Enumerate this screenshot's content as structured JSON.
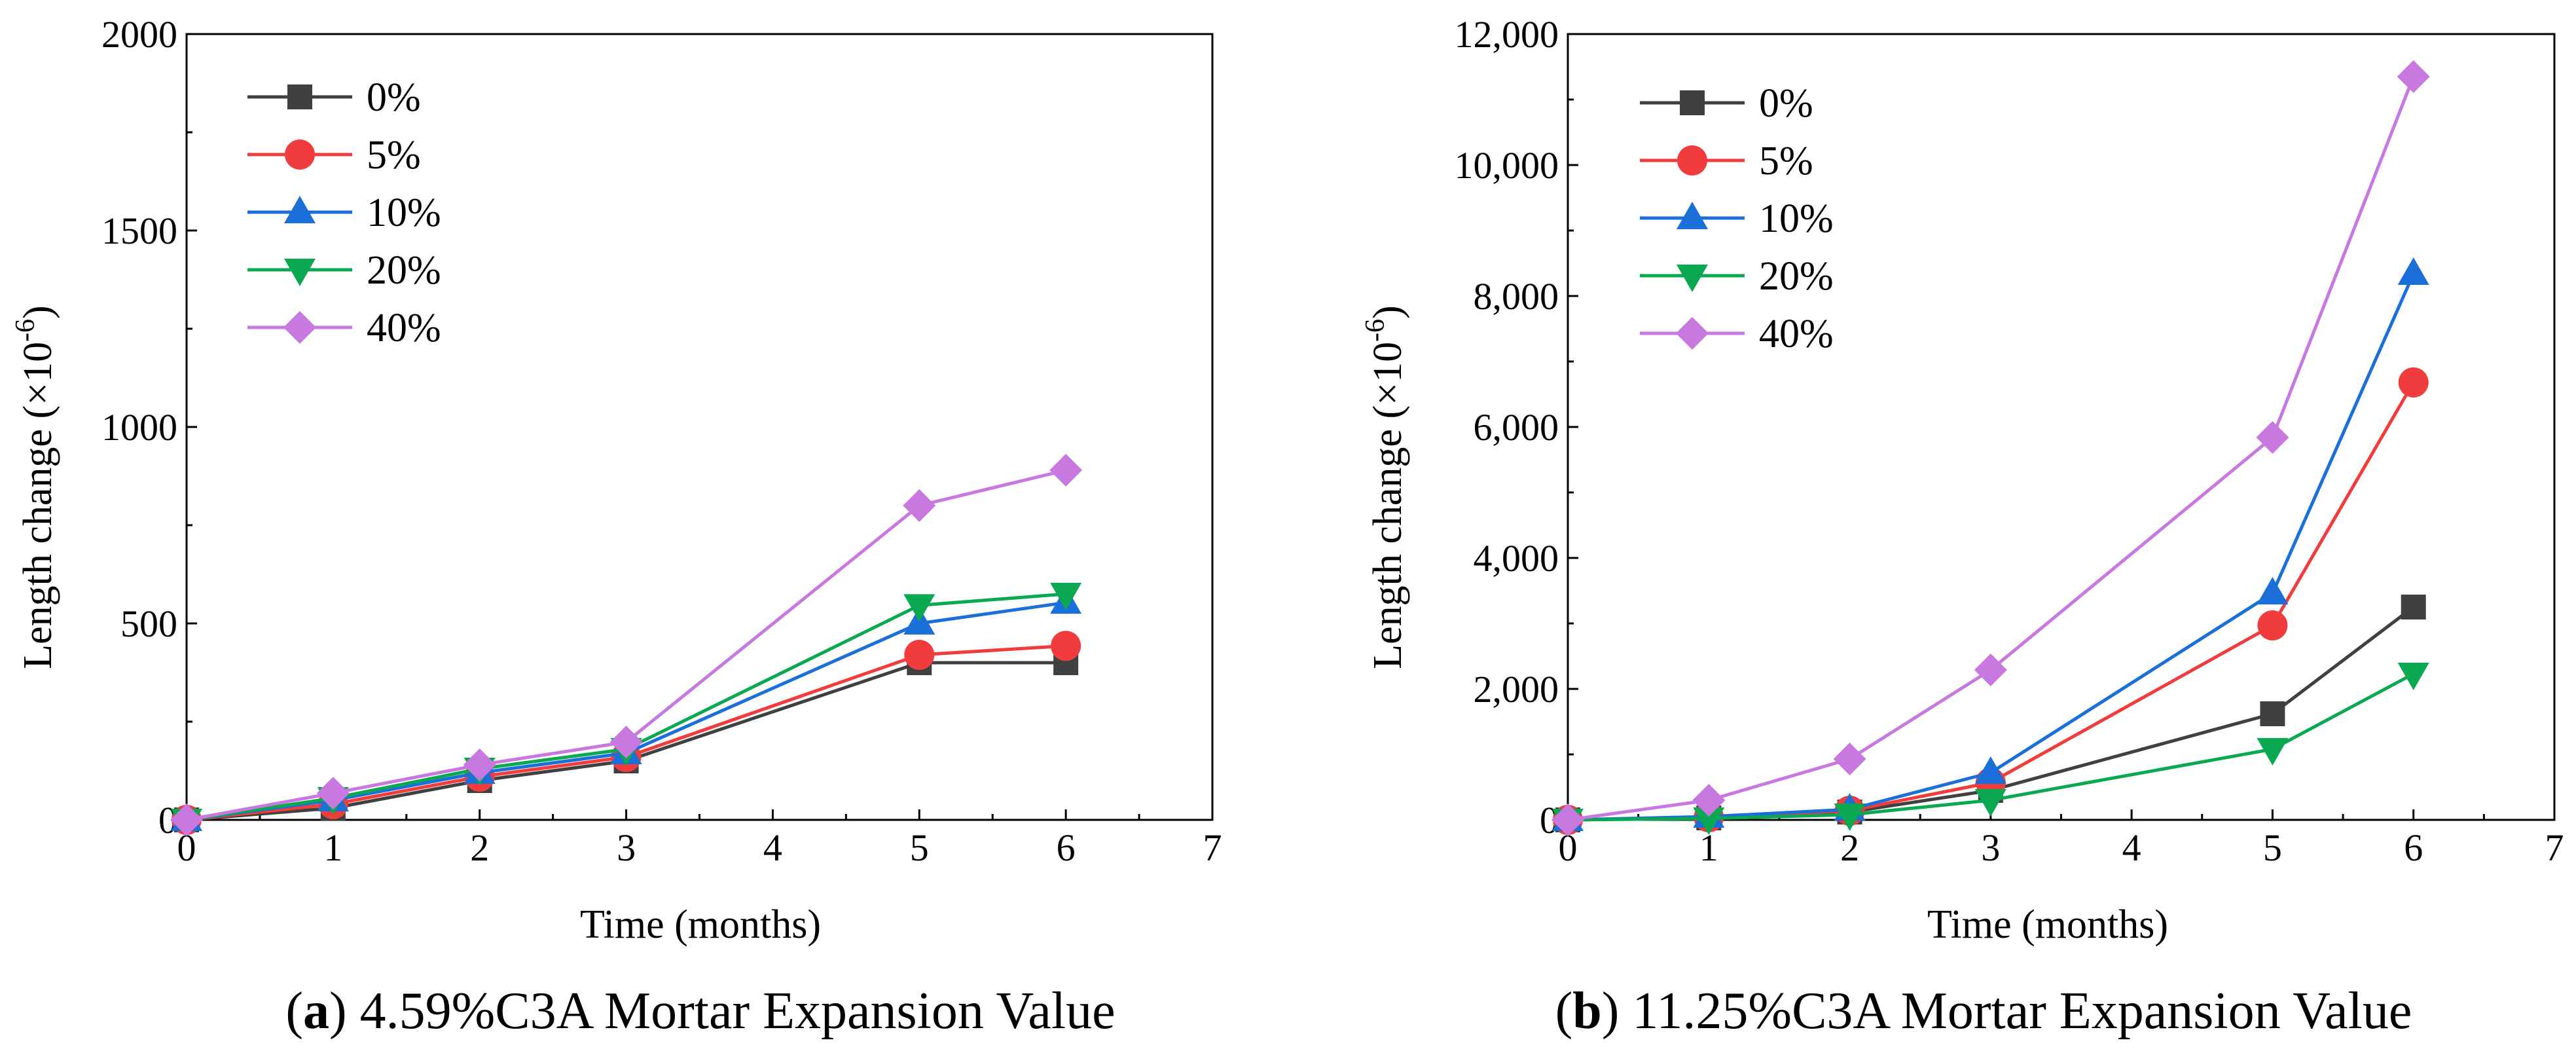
{
  "chart_data": [
    {
      "type": "line",
      "caption_letter": "a",
      "caption_open": "(",
      "caption_close": ")",
      "caption_text": " 4.59%C3A Mortar Expansion Value",
      "xlabel": "Time (months)",
      "ylabel": "Length change (×10",
      "ylabel_exp": "-6",
      "ylabel_close": ")",
      "xlim": [
        0,
        7
      ],
      "ylim": [
        0,
        2000
      ],
      "xticks": [
        0,
        1,
        2,
        3,
        4,
        5,
        6,
        7
      ],
      "yticks": [
        0,
        500,
        1000,
        1500,
        2000
      ],
      "ytick_labels": [
        "0",
        "500",
        "1000",
        "1500",
        "2000"
      ],
      "x": [
        0,
        1,
        2,
        3,
        5,
        6
      ],
      "series": [
        {
          "name": "0%",
          "marker": "square",
          "color": "#404040",
          "values": [
            0,
            30,
            100,
            150,
            400,
            400
          ]
        },
        {
          "name": "5%",
          "marker": "circle",
          "color": "#f03c3c",
          "values": [
            0,
            40,
            110,
            160,
            420,
            443
          ]
        },
        {
          "name": "10%",
          "marker": "triangle-up",
          "color": "#1a6fd8",
          "values": [
            0,
            50,
            120,
            170,
            500,
            553
          ]
        },
        {
          "name": "20%",
          "marker": "triangle-down",
          "color": "#0aa850",
          "values": [
            0,
            55,
            130,
            180,
            546,
            575
          ]
        },
        {
          "name": "40%",
          "marker": "diamond",
          "color": "#c879e0",
          "values": [
            0,
            68,
            140,
            198,
            800,
            890
          ]
        }
      ]
    },
    {
      "type": "line",
      "caption_letter": "b",
      "caption_open": "(",
      "caption_close": ")",
      "caption_text": " 11.25%C3A Mortar Expansion Value",
      "xlabel": "Time (months)",
      "ylabel": "Length change (×10",
      "ylabel_exp": "-6",
      "ylabel_close": ")",
      "xlim": [
        0,
        7
      ],
      "ylim": [
        0,
        12000
      ],
      "xticks": [
        0,
        1,
        2,
        3,
        4,
        5,
        6,
        7
      ],
      "yticks": [
        0,
        2000,
        4000,
        6000,
        8000,
        10000,
        12000
      ],
      "ytick_labels": [
        "0",
        "2,000",
        "4,000",
        "6,000",
        "8,000",
        "10,000",
        "12,000"
      ],
      "x": [
        0,
        1,
        2,
        3,
        5,
        6
      ],
      "series": [
        {
          "name": "0%",
          "marker": "square",
          "color": "#404040",
          "values": [
            0,
            30,
            120,
            450,
            1620,
            3250
          ]
        },
        {
          "name": "5%",
          "marker": "circle",
          "color": "#f03c3c",
          "values": [
            0,
            40,
            140,
            570,
            2970,
            6680
          ]
        },
        {
          "name": "10%",
          "marker": "triangle-up",
          "color": "#1a6fd8",
          "values": [
            0,
            50,
            160,
            720,
            3460,
            8340
          ]
        },
        {
          "name": "20%",
          "marker": "triangle-down",
          "color": "#0aa850",
          "values": [
            0,
            20,
            80,
            300,
            1080,
            2230
          ]
        },
        {
          "name": "40%",
          "marker": "diamond",
          "color": "#c879e0",
          "values": [
            0,
            300,
            930,
            2290,
            5840,
            11350
          ]
        }
      ]
    }
  ]
}
